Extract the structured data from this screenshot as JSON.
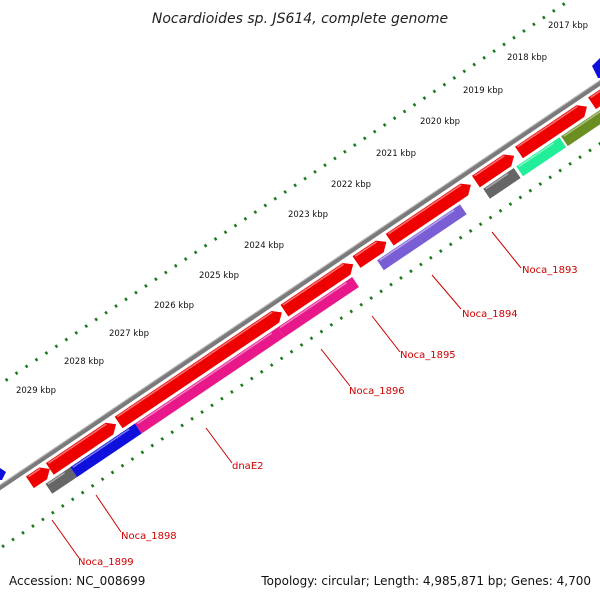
{
  "title": "Nocardioides sp. JS614, complete genome",
  "footer": {
    "accession": "Accession: NC_008699",
    "summary": "Topology: circular; Length: 4,985,871 bp; Genes: 4,700"
  },
  "scale": {
    "ticks": [
      {
        "label": "2017 kbp"
      },
      {
        "label": "2018 kbp"
      },
      {
        "label": "2019 kbp"
      },
      {
        "label": "2020 kbp"
      },
      {
        "label": "2021 kbp"
      },
      {
        "label": "2022 kbp"
      },
      {
        "label": "2023 kbp"
      },
      {
        "label": "2024 kbp"
      },
      {
        "label": "2025 kbp"
      },
      {
        "label": "2026 kbp"
      },
      {
        "label": "2027 kbp"
      },
      {
        "label": "2028 kbp"
      },
      {
        "label": "2029 kbp"
      }
    ]
  },
  "gene_labels": [
    "Noca_1893",
    "Noca_1894",
    "Noca_1895",
    "Noca_1896",
    "dnaE2",
    "Noca_1898",
    "Noca_1899"
  ],
  "colors": {
    "backbone": "#7a7a7a",
    "tick": "#1a7a1a",
    "cds_forward": "#ee0000",
    "label": "#cc0000",
    "dnaE2": "#e8188a",
    "Noca_1896": "#e8188a",
    "Noca_1898": "#1010dd",
    "Noca_1899": "#666666",
    "Noca_1894": "#7a5ed6",
    "Noca_1893": "#666666",
    "teal": "#22ee99",
    "olive": "#6b8e23",
    "edge_blue": "#1010dd"
  }
}
